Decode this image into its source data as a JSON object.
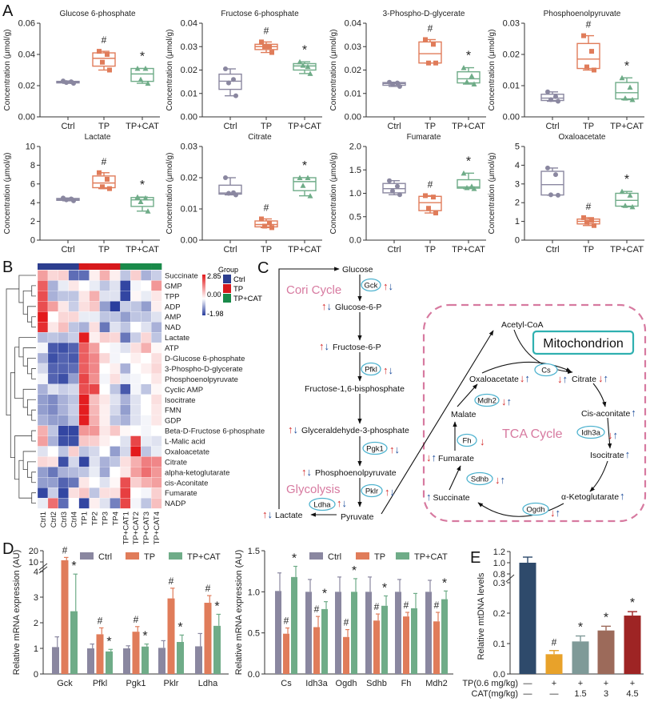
{
  "panel_labels": {
    "a": "A",
    "b": "B",
    "c": "C",
    "d": "D",
    "e": "E"
  },
  "colors": {
    "ctrl": "#8a87a0",
    "tp": "#e07c5a",
    "cat": "#6fac88",
    "heat_high": "#e31a1c",
    "heat_low": "#2a3e9e",
    "group_ctrl": "#2c3e8f",
    "group_tp": "#d7191c",
    "group_cat": "#1a8a4a",
    "pathway_title": "#d77aa0",
    "enzyme_outline": "#4fb3cf",
    "mito_box": "#2fb0b0"
  },
  "chart_data": [
    {
      "type": "box",
      "title": "Glucose 6-phosphate",
      "ylabel": "Concentration (μmol/g)",
      "ylim": [
        0,
        0.06
      ],
      "yticks": [
        "0.00",
        "0.02",
        "0.04",
        "0.06"
      ],
      "groups": [
        {
          "name": "Ctrl",
          "points": [
            0.023,
            0.0225,
            0.022,
            0.0215
          ]
        },
        {
          "name": "TP",
          "points": [
            0.042,
            0.04,
            0.035,
            0.03
          ],
          "sig": "#"
        },
        {
          "name": "TP+CAT",
          "points": [
            0.031,
            0.031,
            0.024,
            0.0215
          ],
          "sig": "*"
        }
      ]
    },
    {
      "type": "box",
      "title": "Fructose 6-phosphate",
      "ylabel": "Concentration (μmol/g)",
      "ylim": [
        0,
        0.04
      ],
      "yticks": [
        "0.00",
        "0.01",
        "0.02",
        "0.03",
        "0.04"
      ],
      "groups": [
        {
          "name": "Ctrl",
          "points": [
            0.0205,
            0.016,
            0.0145,
            0.009
          ]
        },
        {
          "name": "TP",
          "points": [
            0.032,
            0.03,
            0.03,
            0.0275
          ],
          "sig": "#"
        },
        {
          "name": "TP+CAT",
          "points": [
            0.0235,
            0.0215,
            0.022,
            0.0185
          ],
          "sig": "*"
        }
      ]
    },
    {
      "type": "box",
      "title": "3-Phospho-D-glycerate",
      "ylabel": "Concentration (μmol/g)",
      "ylim": [
        0,
        0.04
      ],
      "yticks": [
        "0.00",
        "0.01",
        "0.02",
        "0.03",
        "0.04"
      ],
      "groups": [
        {
          "name": "Ctrl",
          "points": [
            0.0148,
            0.0145,
            0.014,
            0.013
          ]
        },
        {
          "name": "TP",
          "points": [
            0.033,
            0.031,
            0.023,
            0.023
          ],
          "sig": "#"
        },
        {
          "name": "TP+CAT",
          "points": [
            0.021,
            0.0175,
            0.015,
            0.014
          ],
          "sig": "*"
        }
      ]
    },
    {
      "type": "box",
      "title": "Phosphoenolpyruvate",
      "ylabel": "Concentration (μmol/g)",
      "ylim": [
        0,
        0.03
      ],
      "yticks": [
        "0.00",
        "0.01",
        "0.02",
        "0.03"
      ],
      "groups": [
        {
          "name": "Ctrl",
          "points": [
            0.008,
            0.0065,
            0.0055,
            0.005
          ]
        },
        {
          "name": "TP",
          "points": [
            0.026,
            0.021,
            0.016,
            0.015
          ],
          "sig": "#"
        },
        {
          "name": "TP+CAT",
          "points": [
            0.0125,
            0.0095,
            0.006,
            0.0055
          ],
          "sig": "*"
        }
      ]
    },
    {
      "type": "box",
      "title": "Lactate",
      "ylabel": "Concentration (μmol/g)",
      "ylim": [
        0,
        10
      ],
      "yticks": [
        "0",
        "2",
        "4",
        "6",
        "8",
        "10"
      ],
      "groups": [
        {
          "name": "Ctrl",
          "points": [
            4.5,
            4.4,
            4.3,
            4.2
          ]
        },
        {
          "name": "TP",
          "points": [
            7.2,
            6.5,
            5.7,
            5.5
          ],
          "sig": "#"
        },
        {
          "name": "TP+CAT",
          "points": [
            4.6,
            4.5,
            4.1,
            3.1
          ],
          "sig": "*"
        }
      ]
    },
    {
      "type": "box",
      "title": "Citrate",
      "ylabel": "Concentration (μmol/g)",
      "ylim": [
        0,
        0.03
      ],
      "yticks": [
        "0.00",
        "0.01",
        "0.02",
        "0.03"
      ],
      "groups": [
        {
          "name": "Ctrl",
          "points": [
            0.02,
            0.0152,
            0.015,
            0.0145
          ]
        },
        {
          "name": "TP",
          "points": [
            0.0068,
            0.0055,
            0.0045,
            0.004
          ],
          "sig": "#"
        },
        {
          "name": "TP+CAT",
          "points": [
            0.02,
            0.02,
            0.0175,
            0.0142
          ],
          "sig": "*"
        }
      ]
    },
    {
      "type": "box",
      "title": "Fumarate",
      "ylabel": "Concentration (μmol/g)",
      "ylim": [
        0,
        2.0
      ],
      "yticks": [
        "0.0",
        "0.5",
        "1.0",
        "1.5",
        "2.0"
      ],
      "groups": [
        {
          "name": "Ctrl",
          "points": [
            1.27,
            1.15,
            1.05,
            0.97
          ]
        },
        {
          "name": "TP",
          "points": [
            0.95,
            0.92,
            0.68,
            0.58
          ],
          "sig": "#"
        },
        {
          "name": "TP+CAT",
          "points": [
            1.43,
            1.15,
            1.12,
            1.1
          ],
          "sig": "*"
        }
      ]
    },
    {
      "type": "box",
      "title": "Oxaloacetate",
      "ylabel": "Concentration (μmol/g)",
      "ylim": [
        0,
        5
      ],
      "yticks": [
        "0",
        "1",
        "2",
        "3",
        "4",
        "5"
      ],
      "groups": [
        {
          "name": "Ctrl",
          "points": [
            3.85,
            3.5,
            2.42,
            2.4
          ]
        },
        {
          "name": "TP",
          "points": [
            1.2,
            1.05,
            0.95,
            0.78
          ],
          "sig": "#"
        },
        {
          "name": "TP+CAT",
          "points": [
            2.6,
            2.4,
            1.85,
            1.78
          ],
          "sig": "*"
        }
      ]
    },
    {
      "type": "heatmap",
      "rows": [
        "Succinate",
        "GMP",
        "TPP",
        "ADP",
        "AMP",
        "NAD",
        "Lactate",
        "ATP",
        "D-Glucose 6-phosphate",
        "3-Phospho-D-glycerate",
        "Phosphoenolpyruvate",
        "Cyclic AMP",
        "Isocitrate",
        "FMN",
        "GDP",
        "Beta-D-Fructose 6-phosphate",
        "L-Malic acid",
        "Oxaloacetate",
        "Citrate",
        "alpha-ketoglutarate",
        "cis-Aconitate",
        "Fumarate",
        "NADP"
      ],
      "columns": [
        "Ctrl1",
        "Ctrl2",
        "Ctrl3",
        "Ctrl4",
        "TP1",
        "TP2",
        "TP3",
        "TP4",
        "TP+CAT1",
        "TP+CAT2",
        "TP+CAT3",
        "TP+CAT4"
      ],
      "column_groups": [
        "Ctrl",
        "Ctrl",
        "Ctrl",
        "Ctrl",
        "TP",
        "TP",
        "TP",
        "TP",
        "TP+CAT",
        "TP+CAT",
        "TP+CAT",
        "TP+CAT"
      ],
      "values": [
        [
          1.2,
          0.5,
          0.6,
          -1.5,
          -1.5,
          0.2,
          1.0,
          0.2,
          -0.6,
          0.6,
          -0.8,
          -0.5
        ],
        [
          2.0,
          -0.8,
          -0.2,
          0.3,
          0.0,
          -0.2,
          -0.6,
          -0.3,
          -1.9,
          -0.1,
          0.0,
          1.3
        ],
        [
          2.2,
          -0.8,
          -0.6,
          -0.6,
          0.3,
          1.0,
          -0.3,
          -0.3,
          -1.9,
          0.1,
          -0.2,
          0.3
        ],
        [
          2.2,
          1.2,
          0.3,
          -0.5,
          0.4,
          0.7,
          -1.0,
          -1.98,
          -0.5,
          -0.6,
          -1.0,
          0.2
        ],
        [
          2.85,
          0.0,
          0.5,
          0.5,
          -0.2,
          -0.2,
          -0.6,
          -0.6,
          -1.0,
          -0.6,
          -0.6,
          -0.3
        ],
        [
          2.6,
          0.3,
          0.8,
          -0.6,
          -0.8,
          0.4,
          -1.4,
          -0.3,
          -0.6,
          0.0,
          -0.3,
          -0.8
        ],
        [
          -0.7,
          -0.6,
          -0.7,
          -0.5,
          2.8,
          0.2,
          0.6,
          0.5,
          -1.4,
          -0.5,
          0.5,
          -0.6
        ],
        [
          -0.1,
          -1.7,
          -1.8,
          -1.6,
          2.0,
          1.2,
          0.0,
          -0.1,
          -0.3,
          0.4,
          1.0,
          0.1
        ],
        [
          -0.8,
          -1.8,
          -1.6,
          -1.7,
          2.0,
          1.5,
          0.5,
          -0.1,
          0.0,
          0.2,
          0.0,
          0.4
        ],
        [
          -0.4,
          -1.6,
          -1.6,
          -1.5,
          2.0,
          1.5,
          0.0,
          0.2,
          -0.8,
          0.0,
          0.2,
          0.5
        ],
        [
          -0.1,
          -1.6,
          -1.8,
          -1.0,
          2.3,
          1.4,
          -0.1,
          0.4,
          -0.2,
          -0.1,
          0.0,
          0.3
        ],
        [
          -0.8,
          -0.3,
          -0.5,
          -0.4,
          2.2,
          2.3,
          0.0,
          -0.6,
          -1.7,
          -0.1,
          -0.6,
          0.1
        ],
        [
          -1.0,
          -1.2,
          -0.8,
          -0.6,
          2.8,
          0.8,
          0.3,
          -0.3,
          -0.8,
          -0.3,
          0.0,
          0.4
        ],
        [
          -1.0,
          -1.2,
          -0.8,
          -0.5,
          2.8,
          0.9,
          0.2,
          -0.4,
          -1.0,
          -0.3,
          0.0,
          0.3
        ],
        [
          -0.8,
          -1.0,
          -1.0,
          -0.6,
          2.8,
          1.0,
          0.2,
          -0.6,
          -0.8,
          -0.3,
          -0.1,
          0.3
        ],
        [
          1.0,
          -0.6,
          -1.9,
          -1.9,
          1.3,
          1.3,
          0.3,
          0.7,
          0.1,
          0.0,
          -0.1,
          0.0
        ],
        [
          1.2,
          -0.8,
          -1.8,
          -1.8,
          0.7,
          0.6,
          0.2,
          0.0,
          -0.3,
          2.3,
          -0.2,
          -0.3
        ],
        [
          -0.3,
          0.0,
          -0.6,
          0.6,
          -0.6,
          -0.4,
          0.0,
          -1.0,
          -0.4,
          2.85,
          -0.6,
          -0.2
        ],
        [
          0.5,
          0.4,
          -1.8,
          -0.4,
          -1.9,
          -0.3,
          -0.8,
          -0.6,
          0.4,
          1.0,
          1.6,
          1.5
        ],
        [
          -1.0,
          -1.4,
          -0.8,
          -0.7,
          -0.6,
          -0.2,
          -0.9,
          0.0,
          0.3,
          1.2,
          1.8,
          1.3
        ],
        [
          -1.0,
          -1.0,
          -1.6,
          -1.4,
          0.3,
          0.0,
          -0.3,
          0.1,
          2.2,
          0.6,
          1.0,
          1.2
        ],
        [
          -1.9,
          -0.5,
          -1.9,
          0.4,
          0.7,
          -0.6,
          0.4,
          0.4,
          2.4,
          0.0,
          -0.1,
          0.6
        ],
        [
          -0.2,
          1.8,
          -1.5,
          0.0,
          -1.9,
          0.2,
          -0.3,
          -1.3,
          2.3,
          -0.1,
          -0.6,
          0.8
        ]
      ],
      "scale": {
        "max": 2.85,
        "mid": 0.0,
        "min": -1.98,
        "labels": [
          "2.85",
          "0.00",
          "-1.98"
        ]
      },
      "legend_title": "Group",
      "legend_entries": [
        "Ctrl",
        "TP",
        "TP+CAT"
      ]
    },
    {
      "type": "bar",
      "ylabel": "Relative mRNA expression (AU)",
      "yticks": [
        "0",
        "1",
        "2",
        "3",
        "4",
        "10",
        "20"
      ],
      "axis_break": [
        4,
        10
      ],
      "categories": [
        "Gck",
        "Pfkl",
        "Pgk1",
        "Pklr",
        "Ldha"
      ],
      "legend": "top",
      "series": [
        {
          "name": "Ctrl",
          "values": [
            1.05,
            1.0,
            1.0,
            1.02,
            1.08
          ],
          "errors": [
            0.4,
            0.17,
            0.1,
            0.28,
            0.5
          ],
          "sig": [
            "",
            "",
            "",
            "",
            ""
          ]
        },
        {
          "name": "TP",
          "values": [
            11.5,
            1.55,
            1.65,
            2.95,
            2.78
          ],
          "errors": [
            2.5,
            0.25,
            0.2,
            0.4,
            0.28
          ],
          "sig": [
            "#",
            "#",
            "#",
            "#",
            "#"
          ]
        },
        {
          "name": "TP+CAT",
          "values": [
            2.45,
            0.88,
            1.07,
            1.25,
            1.88
          ],
          "errors": [
            1.45,
            0.08,
            0.1,
            0.27,
            0.45
          ],
          "sig": [
            "*",
            "*",
            "*",
            "*",
            "*"
          ]
        }
      ]
    },
    {
      "type": "bar",
      "ylabel": "Relative mRNA expression (AU)",
      "ylim": [
        0,
        1.5
      ],
      "yticks": [
        "0.0",
        "0.5",
        "1.0",
        "1.5"
      ],
      "categories": [
        "Cs",
        "Idh3a",
        "Ogdh",
        "Sdhb",
        "Fh",
        "Mdh2"
      ],
      "legend": "top",
      "series": [
        {
          "name": "Ctrl",
          "values": [
            1.01,
            1.0,
            1.0,
            1.0,
            1.0,
            1.0
          ],
          "errors": [
            0.22,
            0.15,
            0.18,
            0.18,
            0.15,
            0.14
          ],
          "sig": [
            "",
            "",
            "",
            "",
            "",
            ""
          ]
        },
        {
          "name": "TP",
          "values": [
            0.49,
            0.57,
            0.45,
            0.65,
            0.7,
            0.64
          ],
          "errors": [
            0.07,
            0.13,
            0.09,
            0.08,
            0.05,
            0.11
          ],
          "sig": [
            "#",
            "#",
            "#",
            "#",
            "#",
            "#"
          ]
        },
        {
          "name": "TP+CAT",
          "values": [
            1.18,
            0.79,
            1.0,
            0.83,
            0.8,
            0.91
          ],
          "errors": [
            0.13,
            0.09,
            0.16,
            0.12,
            0.18,
            0.1
          ],
          "sig": [
            "*",
            "*",
            "*",
            "*",
            "",
            "*"
          ]
        }
      ]
    },
    {
      "type": "bar",
      "ylabel": "Relative mtDNA levels",
      "yticks": [
        "0.0",
        "0.1",
        "0.2",
        "0.3",
        "0.8",
        "1.0",
        "1.2"
      ],
      "axis_break": [
        0.3,
        0.8
      ],
      "values": [
        1.0,
        0.065,
        0.107,
        0.143,
        0.192
      ],
      "errors": [
        0.1,
        0.012,
        0.018,
        0.014,
        0.013
      ],
      "bar_colors": [
        "#2e4a6b",
        "#e8a22a",
        "#7f9a98",
        "#9c6a5a",
        "#9e2424"
      ],
      "sig": [
        "",
        "#",
        "*",
        "*",
        "*"
      ],
      "condition_rows": [
        {
          "label": "TP(0.6 mg/kg)",
          "values": [
            "—",
            "+",
            "+",
            "+",
            "+"
          ]
        },
        {
          "label": "CAT(mg/kg)",
          "values": [
            "—",
            "—",
            "1.5",
            "3",
            "4.5"
          ]
        }
      ]
    }
  ],
  "pathway": {
    "cori_cycle": "Cori Cycle",
    "glycolysis": "Glycolysis",
    "tca_cycle": "TCA Cycle",
    "mitochondrion": "Mitochondrion",
    "metabolites": {
      "glucose": {
        "label": "Glucose"
      },
      "glucose6p": {
        "label": "Glucose-6-P",
        "tp": "↑",
        "cat": "↓"
      },
      "fructose6p": {
        "label": "Fructose-6-P",
        "tp": "↑",
        "cat": "↓"
      },
      "fructose16bp": {
        "label": "Fructose-1,6-bisphosphate"
      },
      "ga3p": {
        "label": "Glyceraldehyde-3-phosphate",
        "tp": "↑",
        "cat": "↓"
      },
      "pep": {
        "label": "Phosphoenolpyruvate",
        "tp": "↑",
        "cat": "↓"
      },
      "pyruvate": {
        "label": "Pyruvate"
      },
      "lactate": {
        "label": "Lactate",
        "tp": "↑",
        "cat": "↓"
      },
      "acetylcoa": {
        "label": "Acetyl-CoA"
      },
      "oxaloacetate": {
        "label": "Oxaloacetate",
        "tp": "↓",
        "cat": "↑"
      },
      "citrate": {
        "label": "Citrate",
        "tp": "↓",
        "cat": "↑"
      },
      "cisaconitate": {
        "label": "Cis-aconitate",
        "cat": "↑"
      },
      "isocitrate": {
        "label": "Isocitrate",
        "cat": "↑"
      },
      "aketoglutarate": {
        "label": "α-Ketoglutarate",
        "cat": "↑"
      },
      "succinate": {
        "label": "Succinate",
        "cat": "↑"
      },
      "fumarate": {
        "label": "Fumarate",
        "tp": "↓",
        "cat": "↑"
      },
      "malate": {
        "label": "Malate"
      }
    },
    "enzymes": {
      "gck": {
        "label": "Gck",
        "tp": "↑",
        "cat": "↓"
      },
      "pfkl": {
        "label": "Pfkl",
        "tp": "↑",
        "cat": "↓"
      },
      "pgk1": {
        "label": "Pgk1",
        "tp": "↑",
        "cat": "↓"
      },
      "pklr": {
        "label": "Pklr",
        "tp": "↑",
        "cat": "↓"
      },
      "ldha": {
        "label": "Ldha",
        "tp": "↑",
        "cat": "↓"
      },
      "cs": {
        "label": "Cs",
        "tp": "↓",
        "cat": "↑"
      },
      "mdh2": {
        "label": "Mdh2",
        "tp": "↓",
        "cat": "↑"
      },
      "idh3a": {
        "label": "Idh3a",
        "tp": "↓",
        "cat": "↑"
      },
      "fh": {
        "label": "Fh",
        "tp": "↓"
      },
      "sdhb": {
        "label": "Sdhb",
        "tp": "↓",
        "cat": "↑"
      },
      "ogdh": {
        "label": "Ogdh",
        "tp": "↓",
        "cat": "↑"
      }
    }
  }
}
